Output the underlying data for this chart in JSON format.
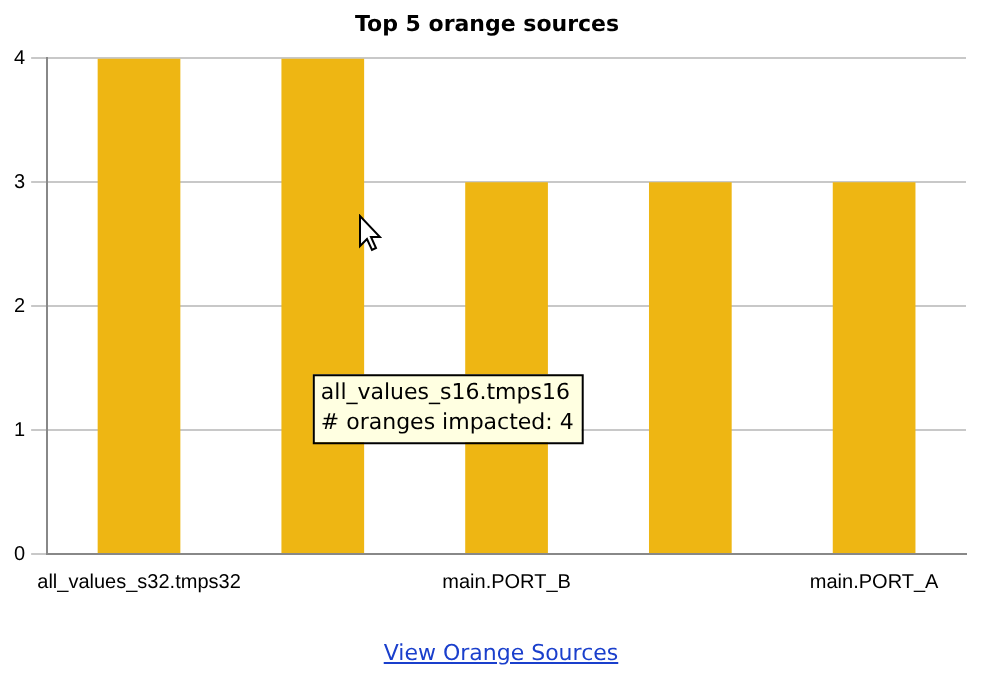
{
  "chart_data": {
    "type": "bar",
    "title": "Top 5 orange sources",
    "categories": [
      "all_values_s32.tmps32",
      null,
      "main.PORT_B",
      null,
      "main.PORT_A"
    ],
    "values": [
      4,
      4,
      3,
      3,
      3
    ],
    "color": "#eeb613",
    "ylim": [
      0,
      4
    ],
    "yticks": [
      0,
      1,
      2,
      3,
      4
    ],
    "grid": "y",
    "legend": false,
    "annotations": [
      "all_values_s16.tmps16",
      "# oranges impacted: 4",
      "View Orange Sources"
    ]
  }
}
